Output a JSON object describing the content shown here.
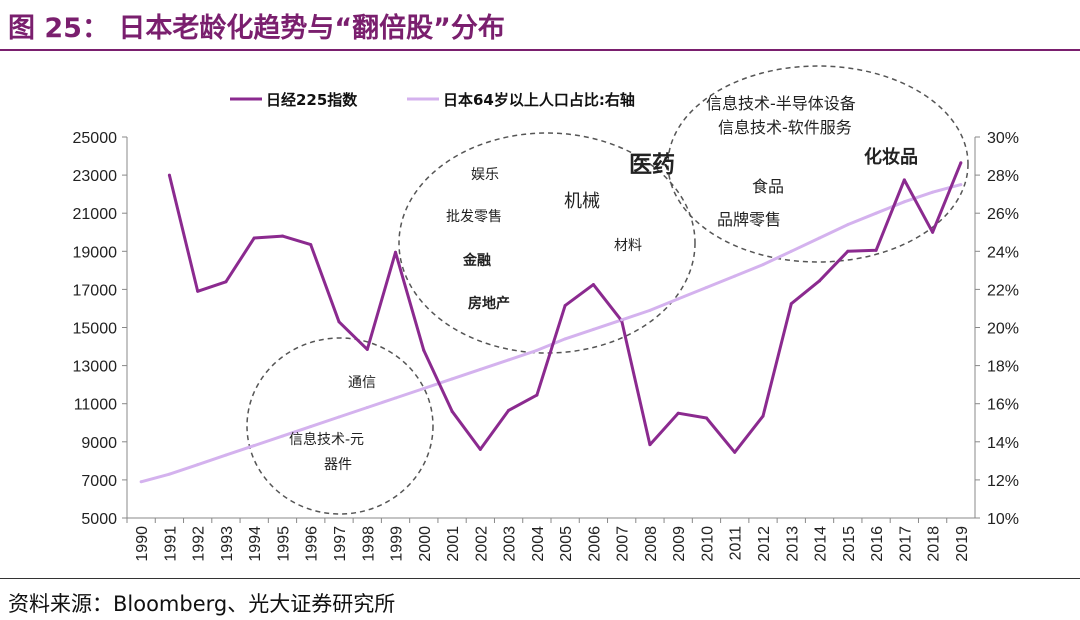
{
  "header": {
    "title": "图 25：  日本老龄化趋势与“翻倍股”分布",
    "source": "资料来源：Bloomberg、光大证券研究所"
  },
  "colors": {
    "title": "#7a1f6e",
    "nikkei": "#8b2a8f",
    "aging": "#d4b2ee",
    "circle": "#555555"
  },
  "chart_data": {
    "type": "line",
    "categories": [
      "1990",
      "1991",
      "1992",
      "1993",
      "1994",
      "1995",
      "1996",
      "1997",
      "1998",
      "1999",
      "2000",
      "2001",
      "2002",
      "2003",
      "2004",
      "2005",
      "2006",
      "2007",
      "2008",
      "2009",
      "2010",
      "2011",
      "2012",
      "2013",
      "2014",
      "2015",
      "2016",
      "2017",
      "2018",
      "2019"
    ],
    "series": [
      {
        "name": "日经225指数",
        "axis": "left",
        "values": [
          null,
          23000,
          16900,
          17400,
          19700,
          19800,
          19350,
          15300,
          13850,
          18950,
          13800,
          10600,
          8600,
          10650,
          11450,
          16150,
          17250,
          15350,
          8850,
          10500,
          10250,
          8450,
          10350,
          16250,
          17450,
          19000,
          19050,
          22750,
          20000,
          23650
        ]
      },
      {
        "name": "日本64岁以上人口占比:右轴",
        "axis": "right",
        "values": [
          11.9,
          12.3,
          12.8,
          13.3,
          13.8,
          14.3,
          14.8,
          15.3,
          15.8,
          16.3,
          16.8,
          17.3,
          17.8,
          18.3,
          18.8,
          19.4,
          19.9,
          20.4,
          20.9,
          21.5,
          22.1,
          22.7,
          23.3,
          24.0,
          24.7,
          25.4,
          26.0,
          26.6,
          27.1,
          27.5
        ]
      }
    ],
    "y_left": {
      "min": 5000,
      "max": 25000,
      "ticks": [
        "5000",
        "7000",
        "9000",
        "11000",
        "13000",
        "15000",
        "17000",
        "19000",
        "21000",
        "23000",
        "25000"
      ]
    },
    "y_right": {
      "min": 10,
      "max": 30,
      "ticks": [
        "10%",
        "12%",
        "14%",
        "16%",
        "18%",
        "20%",
        "22%",
        "24%",
        "26%",
        "28%",
        "30%"
      ]
    },
    "legend": [
      "日经225指数",
      "日本64岁以上人口占比:右轴"
    ],
    "annotations": {
      "c1": [
        "通信",
        "信息技术-元",
        "器件"
      ],
      "c2": [
        "娱乐",
        "批发零售",
        "金融",
        "房地产",
        "机械",
        "材料",
        "医药"
      ],
      "c3": [
        "信息技术-半导体设备",
        "信息技术-软件服务",
        "化妆品",
        "食品",
        "品牌零售"
      ]
    }
  }
}
